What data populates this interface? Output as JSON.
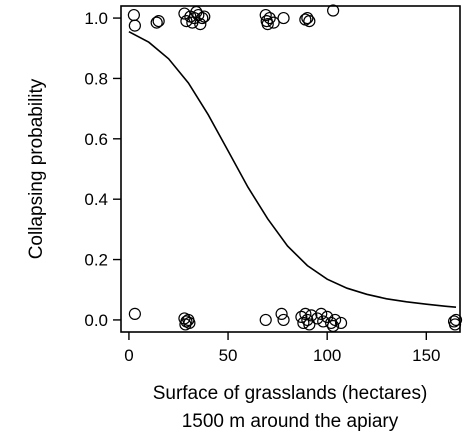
{
  "chart_data": {
    "type": "scatter",
    "xlabel_line1": "Surface of grasslands (hectares)",
    "xlabel_line2": "1500 m around the apiary",
    "ylabel": "Collapsing probability",
    "xlim": [
      -4,
      167
    ],
    "ylim": [
      -0.04,
      1.04
    ],
    "x_ticks": [
      0,
      50,
      100,
      150
    ],
    "x_tick_labels": [
      "0",
      "50",
      "100",
      "150"
    ],
    "y_ticks": [
      0.0,
      0.2,
      0.4,
      0.6,
      0.8,
      1.0
    ],
    "y_tick_labels": [
      "0.0",
      "0.2",
      "0.4",
      "0.6",
      "0.8",
      "1.0"
    ],
    "grid": false,
    "points": [
      {
        "x": 2.5,
        "y": 1.01
      },
      {
        "x": 3,
        "y": 0.975
      },
      {
        "x": 14,
        "y": 0.985
      },
      {
        "x": 15,
        "y": 0.99
      },
      {
        "x": 28,
        "y": 1.015
      },
      {
        "x": 29,
        "y": 0.99
      },
      {
        "x": 31,
        "y": 1.005
      },
      {
        "x": 32,
        "y": 0.985
      },
      {
        "x": 33,
        "y": 1.0
      },
      {
        "x": 34,
        "y": 1.02
      },
      {
        "x": 35,
        "y": 1.01
      },
      {
        "x": 36,
        "y": 0.98
      },
      {
        "x": 37,
        "y": 1.0
      },
      {
        "x": 38,
        "y": 1.005
      },
      {
        "x": 69,
        "y": 1.01
      },
      {
        "x": 69.5,
        "y": 0.99
      },
      {
        "x": 70,
        "y": 0.98
      },
      {
        "x": 71,
        "y": 1.0
      },
      {
        "x": 73,
        "y": 0.985
      },
      {
        "x": 78,
        "y": 1.0
      },
      {
        "x": 89,
        "y": 0.995
      },
      {
        "x": 90,
        "y": 1.0
      },
      {
        "x": 91,
        "y": 0.99
      },
      {
        "x": 103,
        "y": 1.025
      },
      {
        "x": 3,
        "y": 0.02
      },
      {
        "x": 28,
        "y": 0.005
      },
      {
        "x": 28.5,
        "y": -0.015
      },
      {
        "x": 29,
        "y": -0.005
      },
      {
        "x": 30,
        "y": 0.0
      },
      {
        "x": 30.5,
        "y": -0.01
      },
      {
        "x": 69,
        "y": 0.0
      },
      {
        "x": 77,
        "y": 0.02
      },
      {
        "x": 78,
        "y": 0.0
      },
      {
        "x": 87,
        "y": 0.01
      },
      {
        "x": 88,
        "y": -0.01
      },
      {
        "x": 89,
        "y": 0.02
      },
      {
        "x": 90,
        "y": 0.0
      },
      {
        "x": 91,
        "y": -0.015
      },
      {
        "x": 92,
        "y": 0.015
      },
      {
        "x": 95,
        "y": 0.005
      },
      {
        "x": 97,
        "y": 0.02
      },
      {
        "x": 98,
        "y": -0.005
      },
      {
        "x": 100,
        "y": 0.01
      },
      {
        "x": 102,
        "y": -0.01
      },
      {
        "x": 103,
        "y": -0.02
      },
      {
        "x": 104,
        "y": 0.0
      },
      {
        "x": 107,
        "y": -0.01
      },
      {
        "x": 164,
        "y": -0.005
      },
      {
        "x": 164.5,
        "y": -0.015
      },
      {
        "x": 165,
        "y": 0.0
      }
    ],
    "fitted_curve": {
      "type": "logistic",
      "x": [
        0,
        10,
        20,
        30,
        40,
        50,
        60,
        70,
        80,
        90,
        100,
        110,
        120,
        130,
        140,
        150,
        160,
        165
      ],
      "y": [
        0.955,
        0.92,
        0.865,
        0.785,
        0.68,
        0.56,
        0.44,
        0.335,
        0.245,
        0.18,
        0.135,
        0.105,
        0.085,
        0.07,
        0.06,
        0.052,
        0.045,
        0.042
      ]
    }
  }
}
